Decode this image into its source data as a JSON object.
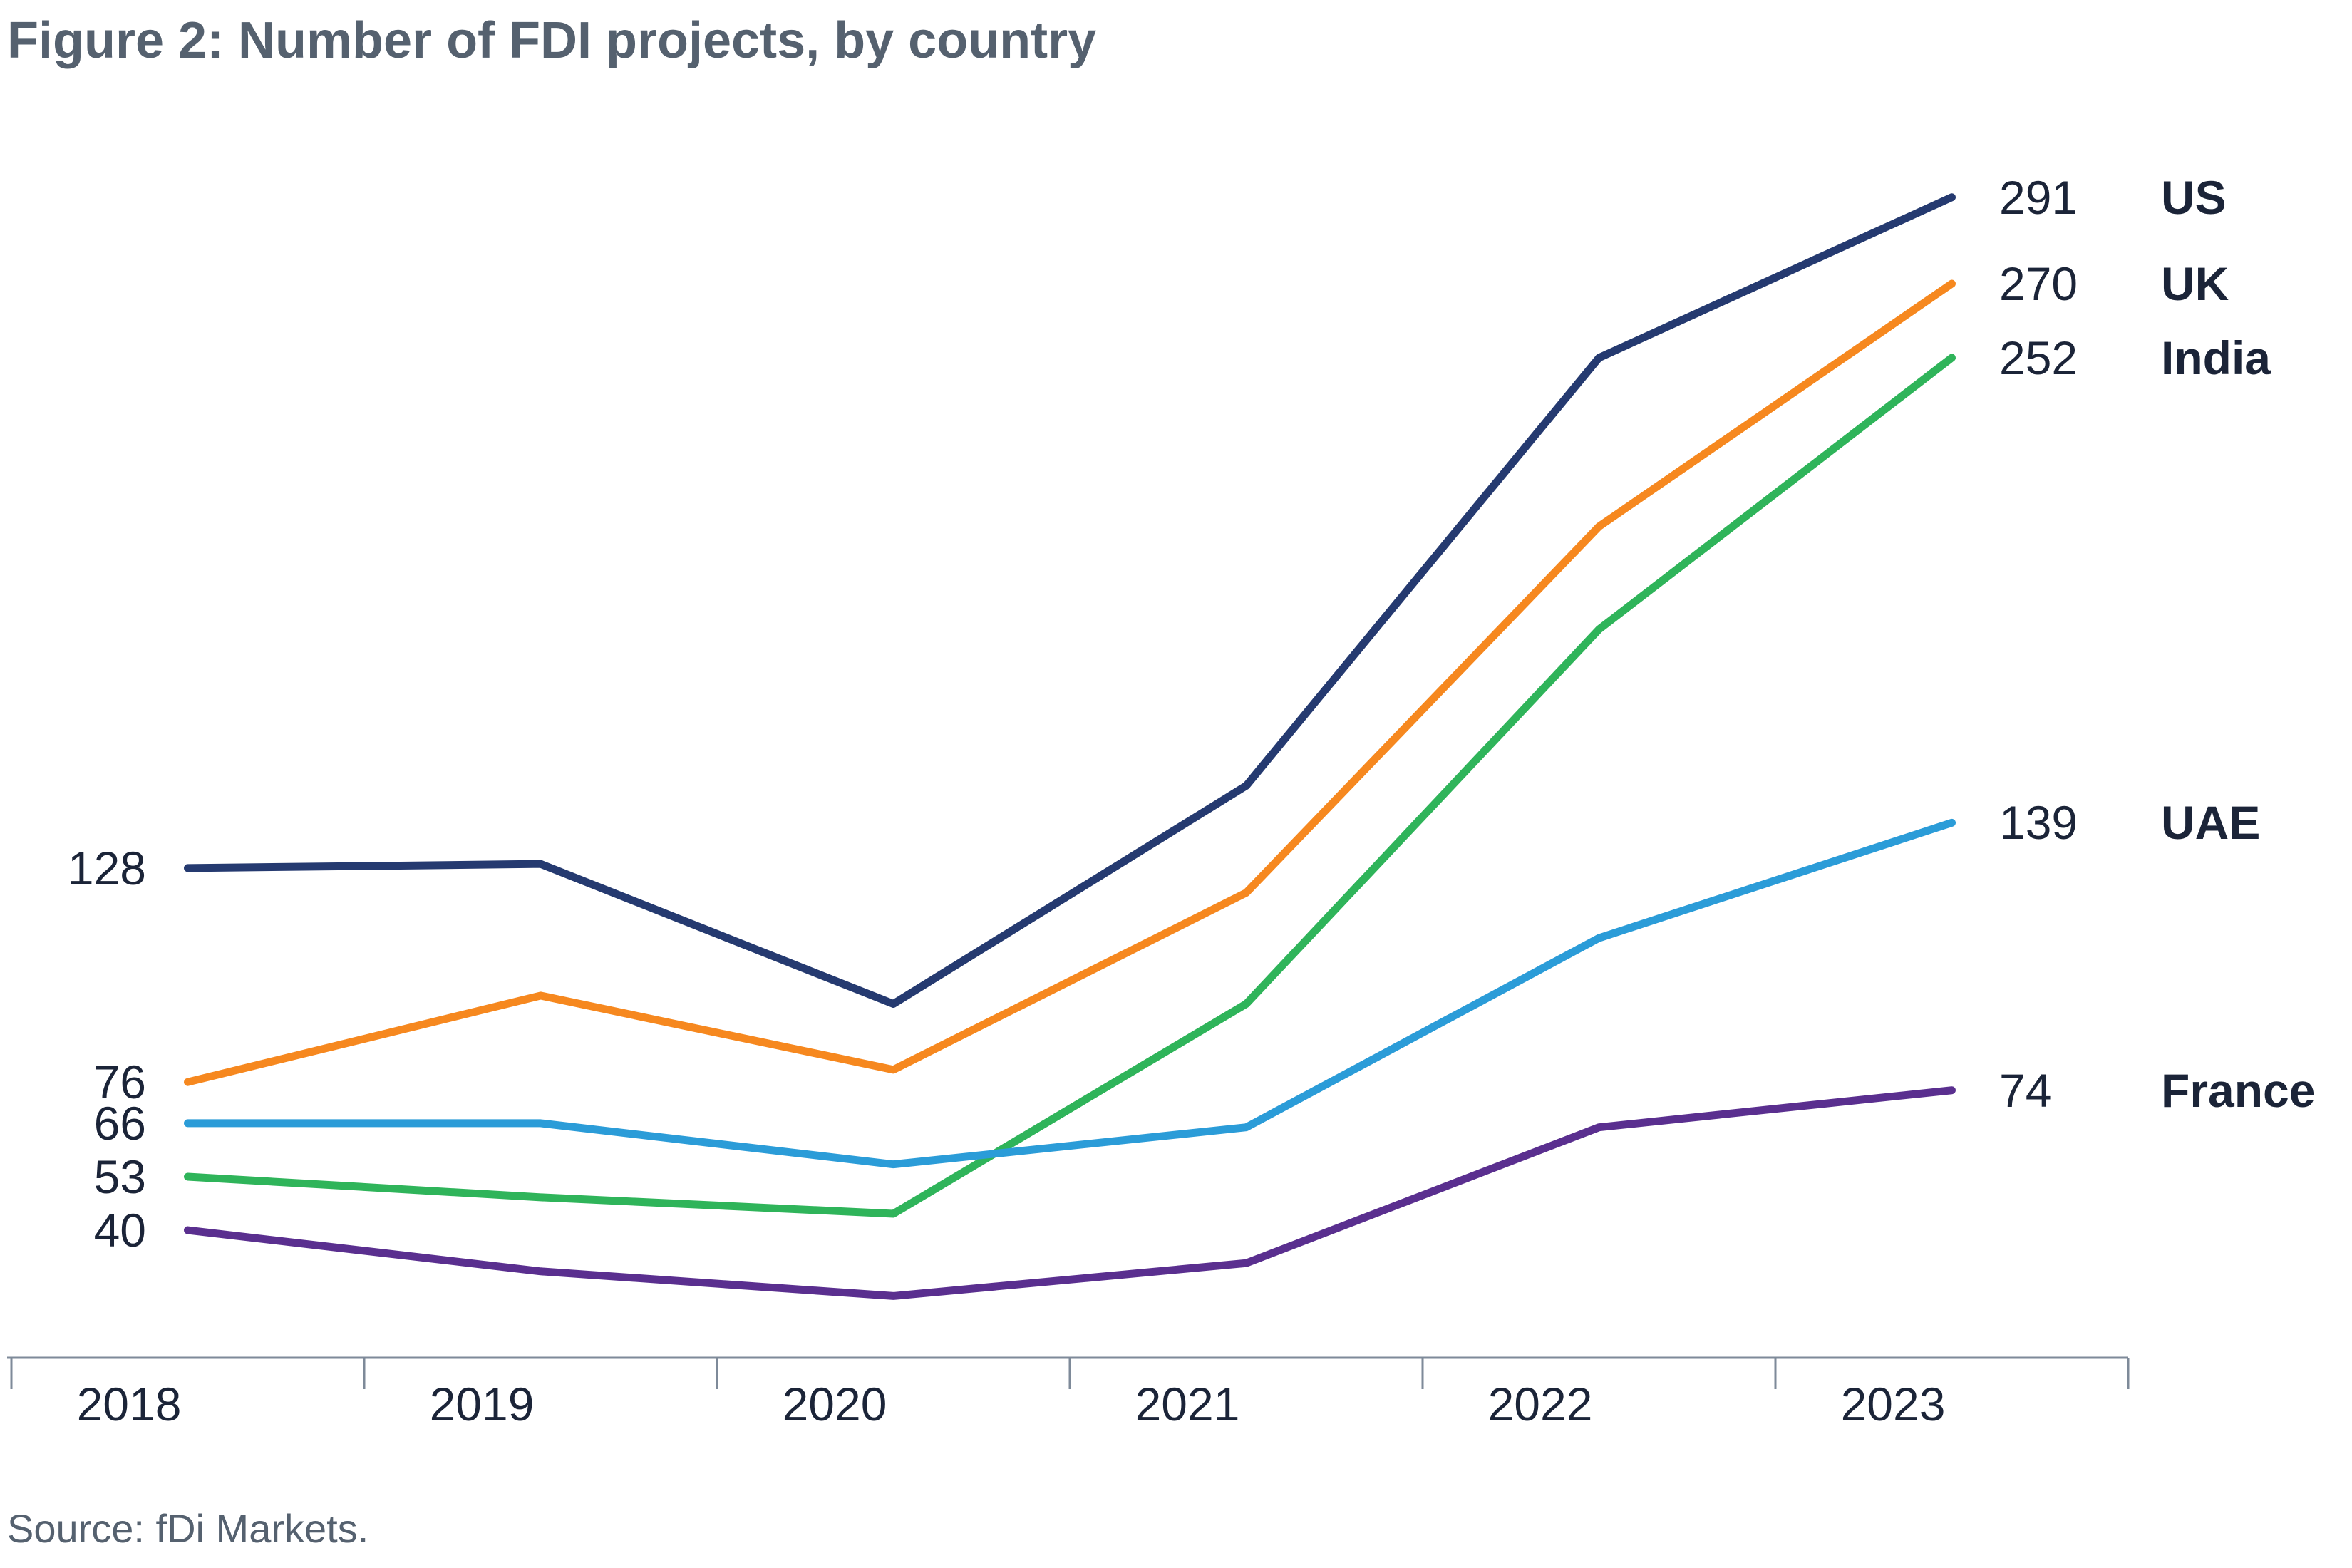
{
  "title": "Figure 2: Number of FDI projects, by country",
  "source": "Source: fDi Markets.",
  "colors": {
    "title_text": "#55616F",
    "axis_text": "#1B2438",
    "axis_line": "#7E8A99",
    "background": "#FFFFFF"
  },
  "chart_data": {
    "type": "line",
    "title": "Figure 2: Number of FDI projects, by country",
    "xlabel": "",
    "ylabel": "",
    "grid": false,
    "legend_position": "right-edge-direct-labels",
    "x_categories": [
      "2018",
      "2019",
      "2020",
      "2021",
      "2022",
      "2023"
    ],
    "ylim": [
      0,
      330
    ],
    "series": [
      {
        "name": "US",
        "color": "#253A70",
        "values": [
          128,
          129,
          95,
          148,
          252,
          291
        ],
        "first_value_label": "128",
        "last_value_label": "291"
      },
      {
        "name": "UK",
        "color": "#F6881F",
        "values": [
          76,
          97,
          79,
          122,
          211,
          270
        ],
        "first_value_label": "76",
        "last_value_label": "270"
      },
      {
        "name": "India",
        "color": "#2FB45A",
        "values": [
          53,
          48,
          44,
          95,
          186,
          252
        ],
        "first_value_label": "53",
        "last_value_label": "252"
      },
      {
        "name": "UAE",
        "color": "#2B9CD8",
        "values": [
          66,
          66,
          56,
          65,
          111,
          139
        ],
        "first_value_label": "66",
        "last_value_label": "139"
      },
      {
        "name": "France",
        "color": "#5A2F8F",
        "values": [
          40,
          30,
          24,
          32,
          65,
          74
        ],
        "first_value_label": "40",
        "last_value_label": "74"
      }
    ]
  }
}
